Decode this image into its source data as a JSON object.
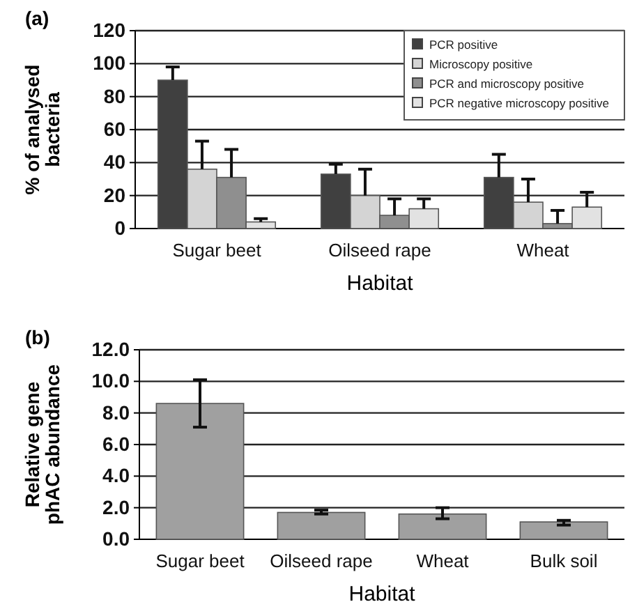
{
  "chart_data": [
    {
      "type": "bar",
      "title": "(a)",
      "xlabel": "Habitat",
      "ylabel": "% of analysed bacteria",
      "categories": [
        "Sugar beet",
        "Oilseed rape",
        "Wheat"
      ],
      "series": [
        {
          "name": "PCR positive",
          "color": "#404040",
          "values": [
            90,
            33,
            31
          ],
          "errors": [
            [
              90,
              98
            ],
            [
              33,
              39
            ],
            [
              31,
              45
            ]
          ]
        },
        {
          "name": "Microscopy positive",
          "color": "#d4d4d4",
          "values": [
            36,
            20,
            16
          ],
          "errors": [
            [
              36,
              53
            ],
            [
              20,
              36
            ],
            [
              16,
              30
            ]
          ]
        },
        {
          "name": "PCR and microscopy positive",
          "color": "#8f8f8f",
          "values": [
            31,
            8,
            3
          ],
          "errors": [
            [
              31,
              48
            ],
            [
              8,
              18
            ],
            [
              3,
              11
            ]
          ]
        },
        {
          "name": "PCR negative microscopy positive",
          "color": "#e2e2e2",
          "values": [
            4,
            12,
            13
          ],
          "errors": [
            [
              4,
              6
            ],
            [
              12,
              18
            ],
            [
              13,
              22
            ]
          ]
        }
      ],
      "ylim": [
        0,
        120
      ],
      "yticks": [
        0,
        20,
        40,
        60,
        80,
        100,
        120
      ],
      "grid": "y",
      "legend": "top right"
    },
    {
      "type": "bar",
      "title": "(b)",
      "xlabel": "Habitat",
      "ylabel": "Relative gene phAC abundance",
      "categories": [
        "Sugar beet",
        "Oilseed rape",
        "Wheat",
        "Bulk soil"
      ],
      "series": [
        {
          "color": "#a0a0a0",
          "values": [
            8.6,
            1.7,
            1.6,
            1.1
          ],
          "errors": [
            [
              7.1,
              10.1
            ],
            [
              1.6,
              1.85
            ],
            [
              1.3,
              2.0
            ],
            [
              0.9,
              1.2
            ]
          ]
        }
      ],
      "ylim": [
        0,
        12
      ],
      "yticks": [
        {
          "value": 0,
          "label": "0.0"
        },
        {
          "value": 2,
          "label": "2.0"
        },
        {
          "value": 4,
          "label": "4.0"
        },
        {
          "value": 6,
          "label": "6.0"
        },
        {
          "value": 8,
          "label": "8.0"
        },
        {
          "value": 10,
          "label": "10.0"
        },
        {
          "value": 12,
          "label": "12.0"
        }
      ],
      "grid": "y"
    }
  ]
}
